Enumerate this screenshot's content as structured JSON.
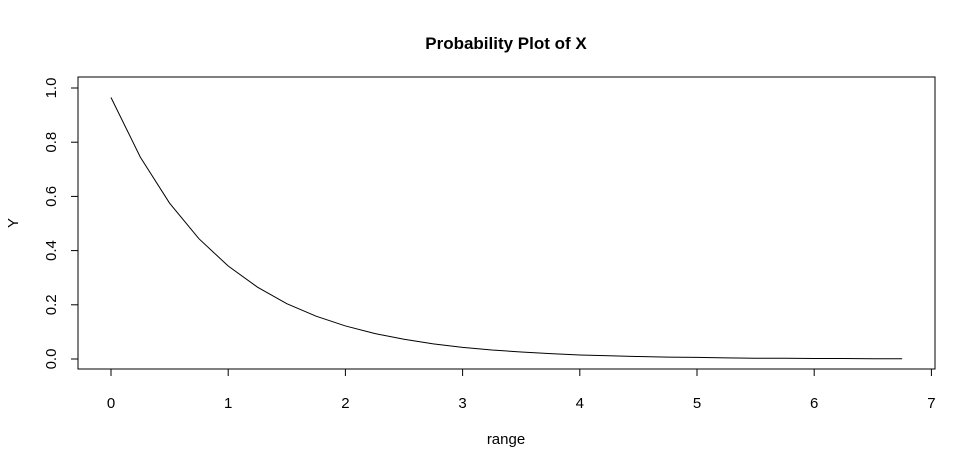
{
  "chart_data": {
    "type": "line",
    "title": "Probability Plot of X",
    "xlabel": "range",
    "ylabel": "Y",
    "xlim": [
      0,
      7
    ],
    "ylim": [
      0,
      1
    ],
    "x_ticks": [
      "0",
      "1",
      "2",
      "3",
      "4",
      "5",
      "6",
      "7"
    ],
    "y_ticks": [
      "0.0",
      "0.2",
      "0.4",
      "0.6",
      "0.8",
      "1.0"
    ],
    "grid": false,
    "legend": "none",
    "line_color": "#000000",
    "series": [
      {
        "x": [
          0,
          0.25,
          0.5,
          0.75,
          1.0,
          1.25,
          1.5,
          1.75,
          2.0,
          2.25,
          2.5,
          2.75,
          3.0,
          3.25,
          3.5,
          3.75,
          4.0,
          4.25,
          4.5,
          4.75,
          5.0,
          5.25,
          5.5,
          5.75,
          6.0,
          6.25,
          6.5,
          6.75
        ],
        "values": [
          0.965,
          0.745,
          0.575,
          0.444,
          0.343,
          0.265,
          0.204,
          0.158,
          0.122,
          0.094,
          0.073,
          0.056,
          0.043,
          0.033,
          0.026,
          0.02,
          0.015,
          0.012,
          0.009,
          0.007,
          0.006,
          0.004,
          0.003,
          0.003,
          0.002,
          0.002,
          0.001,
          0.001
        ]
      }
    ]
  }
}
